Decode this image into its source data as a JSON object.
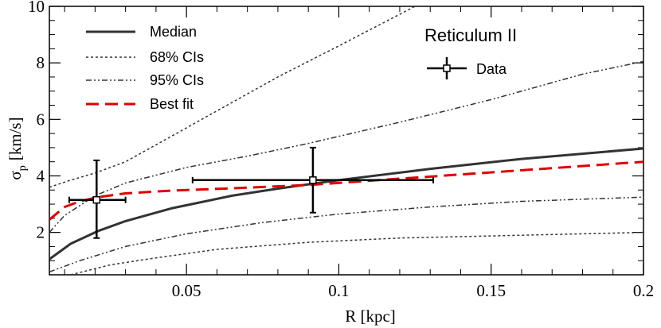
{
  "chart_data": {
    "type": "line",
    "title": "Reticulum II",
    "xlabel": "R [kpc]",
    "ylabel_main": "σ",
    "ylabel_sub": "p",
    "ylabel_units": "[km/s]",
    "xlim": [
      0.005,
      0.2
    ],
    "ylim": [
      0.5,
      10
    ],
    "xticks": [
      0.05,
      0.1,
      0.15,
      0.2
    ],
    "xtick_labels": [
      "0.05",
      "0.1",
      "0.15",
      "0.2"
    ],
    "yticks": [
      2,
      4,
      6,
      8,
      10
    ],
    "ytick_labels": [
      "2",
      "4",
      "6",
      "8",
      "10"
    ],
    "legend": [
      {
        "label": "Median",
        "style": "solid"
      },
      {
        "label": "68% CIs",
        "style": "dotted"
      },
      {
        "label": "95% CIs",
        "style": "dashdot"
      },
      {
        "label": "Best fit",
        "style": "dashed-red"
      }
    ],
    "data_legend_label": "Data",
    "series": [
      {
        "name": "Median",
        "color": "#333333",
        "x": [
          0.005,
          0.012,
          0.021,
          0.03,
          0.045,
          0.065,
          0.08,
          0.1,
          0.13,
          0.16,
          0.2
        ],
        "y": [
          1.05,
          1.6,
          2.05,
          2.4,
          2.85,
          3.3,
          3.55,
          3.85,
          4.25,
          4.6,
          4.97
        ]
      },
      {
        "name": "68% CI upper",
        "color": "#333333",
        "x": [
          0.005,
          0.012,
          0.02,
          0.03,
          0.045,
          0.06,
          0.08,
          0.1,
          0.125
        ],
        "y": [
          3.6,
          3.85,
          4.1,
          4.5,
          5.4,
          6.3,
          7.5,
          8.6,
          10.0
        ]
      },
      {
        "name": "68% CI lower",
        "color": "#333333",
        "x": [
          0.012,
          0.025,
          0.04,
          0.06,
          0.09,
          0.12,
          0.16,
          0.2
        ],
        "y": [
          0.5,
          0.85,
          1.1,
          1.4,
          1.65,
          1.8,
          1.9,
          2.0
        ]
      },
      {
        "name": "95% CI upper",
        "color": "#333333",
        "x": [
          0.005,
          0.01,
          0.02,
          0.03,
          0.05,
          0.07,
          0.09,
          0.12,
          0.15,
          0.18,
          0.2
        ],
        "y": [
          2.0,
          2.6,
          3.3,
          3.75,
          4.3,
          4.7,
          5.15,
          5.9,
          6.7,
          7.6,
          8.05
        ]
      },
      {
        "name": "95% CI lower",
        "color": "#333333",
        "x": [
          0.005,
          0.015,
          0.03,
          0.05,
          0.075,
          0.1,
          0.13,
          0.16,
          0.2
        ],
        "y": [
          0.6,
          1.0,
          1.5,
          1.95,
          2.35,
          2.65,
          2.9,
          3.1,
          3.25
        ]
      },
      {
        "name": "Best fit",
        "color": "#e00000",
        "x": [
          0.005,
          0.01,
          0.015,
          0.021,
          0.03,
          0.045,
          0.065,
          0.09,
          0.12,
          0.16,
          0.2
        ],
        "y": [
          2.45,
          2.9,
          3.1,
          3.25,
          3.38,
          3.48,
          3.56,
          3.68,
          3.9,
          4.2,
          4.5
        ]
      }
    ],
    "data_points": [
      {
        "x": 0.0205,
        "y": 3.15,
        "xerr_low": 0.0115,
        "xerr_high": 0.03,
        "yerr_low": 1.8,
        "yerr_high": 4.55
      },
      {
        "x": 0.0915,
        "y": 3.85,
        "xerr_low": 0.052,
        "xerr_high": 0.131,
        "yerr_low": 2.7,
        "yerr_high": 5.0
      }
    ]
  }
}
